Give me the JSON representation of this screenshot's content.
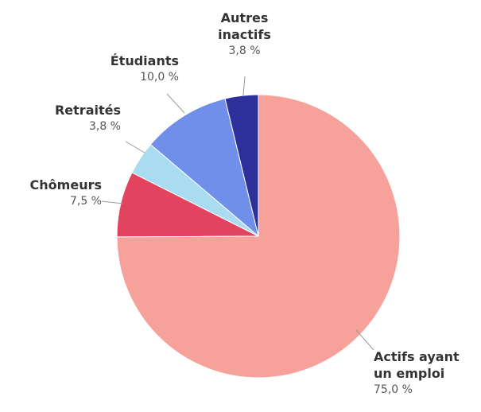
{
  "chart_data": {
    "type": "pie",
    "categories": [
      "Actifs ayant un emploi",
      "Chômeurs",
      "Retraités",
      "Étudiants",
      "Autres inactifs"
    ],
    "values": [
      75.0,
      7.5,
      3.8,
      10.0,
      3.8
    ],
    "value_labels": [
      "75,0 %",
      "7,5 %",
      "3,8 %",
      "10,0 %",
      "3,8 %"
    ],
    "colors": [
      "#f6a29b",
      "#e2445f",
      "#a9dcf0",
      "#6f8fe9",
      "#2d2f9b"
    ]
  }
}
